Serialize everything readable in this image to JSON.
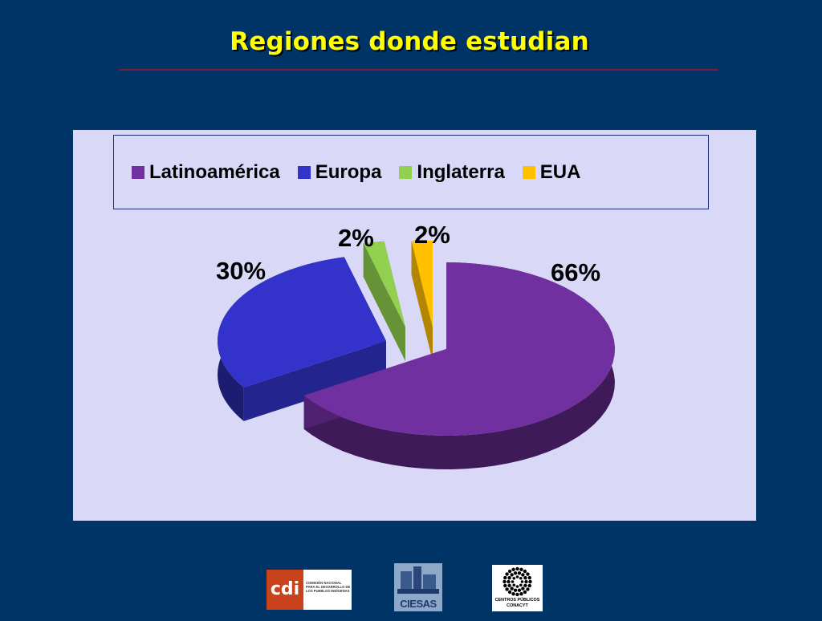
{
  "slide": {
    "title": "Regiones donde estudian"
  },
  "chart_data": {
    "type": "pie",
    "style": "3d-exploded",
    "categories": [
      "Latinoamérica",
      "Europa",
      "Inglaterra",
      "EUA"
    ],
    "values": [
      66,
      30,
      2,
      2
    ],
    "unit": "%",
    "data_labels": [
      "66%",
      "30%",
      "2%",
      "2%"
    ],
    "colors": [
      "#7030a0",
      "#3333cc",
      "#92d050",
      "#ffc000"
    ],
    "legend_position": "top",
    "background": "#d9d8f6"
  },
  "logos": {
    "cdi": {
      "mark": "cdi",
      "text": "COMISIÓN NACIONAL PARA EL DESARROLLO DE LOS PUEBLOS INDÍGENAS"
    },
    "ciesas": {
      "text": "CIESAS"
    },
    "conacyt": {
      "line1": "CENTROS PÚBLICOS",
      "line2": "CONACYT"
    }
  }
}
